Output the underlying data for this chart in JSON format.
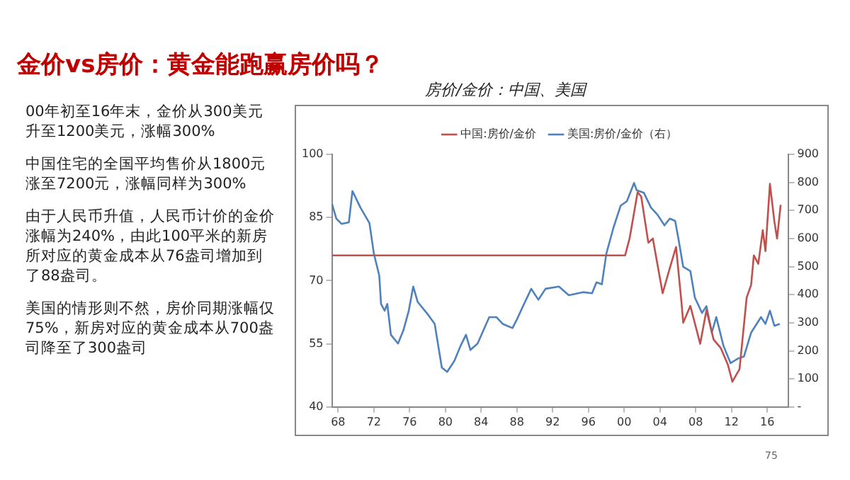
{
  "chart_data": {
    "type": "line",
    "title": "金价vs房价：黄金能跑赢房价吗？",
    "subtitle": "房价/金价：中国、美国",
    "annotations": [
      "00年初至16年末，金价从300美元升至1200美元，涨幅300%",
      "中国住宅的全国平均售价从1800元涨至7200元，涨幅同样为300%",
      "由于人民币升值，人民币计价的金价涨幅为240%，由此100平米的新房所对应的黄金成本从76盎司增加到了88盎司。",
      "美国的情形则不然，房价同期涨幅仅75%，新房对应的黄金成本从700盎司降至了300盎司",
      "75"
    ],
    "xlim": [
      1967.3,
      2018.4
    ],
    "xticks": [
      {
        "value": 1968,
        "label": "68"
      },
      {
        "value": 1972,
        "label": "72"
      },
      {
        "value": 1976,
        "label": "76"
      },
      {
        "value": 1980,
        "label": "80"
      },
      {
        "value": 1984,
        "label": "84"
      },
      {
        "value": 1988,
        "label": "88"
      },
      {
        "value": 1992,
        "label": "92"
      },
      {
        "value": 1996,
        "label": "96"
      },
      {
        "value": 2000,
        "label": "00"
      },
      {
        "value": 2004,
        "label": "04"
      },
      {
        "value": 2008,
        "label": "08"
      },
      {
        "value": 2012,
        "label": "12"
      },
      {
        "value": 2016,
        "label": "16"
      }
    ],
    "ylim": [
      40,
      100
    ],
    "yticks": [
      40,
      55,
      70,
      85,
      100
    ],
    "y2lim": [
      0,
      900
    ],
    "y2ticks": [
      {
        "value": 0,
        "label": "-"
      },
      100,
      200,
      300,
      400,
      500,
      600,
      700,
      800,
      900
    ],
    "grid": false,
    "legend": "top",
    "marker": "none",
    "line_style": "solid",
    "series": [
      {
        "name": "中国:房价/金价",
        "color": "#c0504d",
        "x": [
          1967.3,
          2000.1,
          2000.6,
          2001.5,
          2001.9,
          2002.7,
          2003.2,
          2004.3,
          2005.1,
          2005.8,
          2006.4,
          2006.6,
          2007.4,
          2008.5,
          2009.2,
          2010.0,
          2010.8,
          2011.6,
          2012.1,
          2012.9,
          2013.7,
          2014.2,
          2014.5,
          2015.0,
          2015.5,
          2015.8,
          2016.3,
          2016.8,
          2017.1,
          2017.5
        ],
        "values": [
          76,
          76,
          80,
          91,
          90,
          79,
          80,
          67,
          73,
          78,
          65,
          60,
          64,
          55,
          63,
          56,
          54,
          50,
          46,
          49,
          66,
          69,
          76,
          74,
          82,
          77,
          93,
          84,
          80,
          88
        ]
      },
      {
        "name": "美国:房价/金价（右）",
        "color": "#4f81bd",
        "axis": "y2",
        "x": [
          1967.3,
          1967.8,
          1968.4,
          1969.2,
          1969.6,
          1970.5,
          1971.5,
          1972.0,
          1972.6,
          1972.8,
          1973.2,
          1973.5,
          1973.9,
          1974.7,
          1975.3,
          1975.9,
          1976.4,
          1976.9,
          1978.1,
          1978.8,
          1979.6,
          1980.2,
          1981.0,
          1981.7,
          1982.3,
          1982.8,
          1983.6,
          1984.9,
          1985.7,
          1986.4,
          1987.5,
          1988.0,
          1988.8,
          1989.6,
          1990.4,
          1991.2,
          1992.7,
          1993.8,
          1995.4,
          1996.4,
          1996.9,
          1997.5,
          1998.0,
          1998.8,
          1999.6,
          2000.3,
          2001.1,
          2001.4,
          2002.2,
          2003.0,
          2003.7,
          2004.5,
          2005.1,
          2005.7,
          2006.1,
          2006.6,
          2007.4,
          2007.9,
          2008.7,
          2009.2,
          2009.8,
          2010.3,
          2011.1,
          2011.9,
          2012.7,
          2013.4,
          2014.2,
          2015.3,
          2015.8,
          2016.3,
          2016.8,
          2017.4
        ],
        "values": [
          725,
          671,
          652,
          658,
          769,
          710,
          655,
          546,
          468,
          367,
          343,
          367,
          257,
          226,
          273,
          343,
          429,
          374,
          327,
          296,
          140,
          125,
          164,
          218,
          257,
          203,
          226,
          320,
          320,
          296,
          281,
          312,
          367,
          421,
          382,
          421,
          429,
          398,
          409,
          405,
          444,
          437,
          546,
          639,
          717,
          733,
          798,
          772,
          763,
          710,
          686,
          647,
          671,
          663,
          593,
          499,
          484,
          390,
          335,
          359,
          265,
          320,
          218,
          156,
          172,
          180,
          265,
          320,
          296,
          343,
          289,
          296
        ]
      }
    ]
  }
}
